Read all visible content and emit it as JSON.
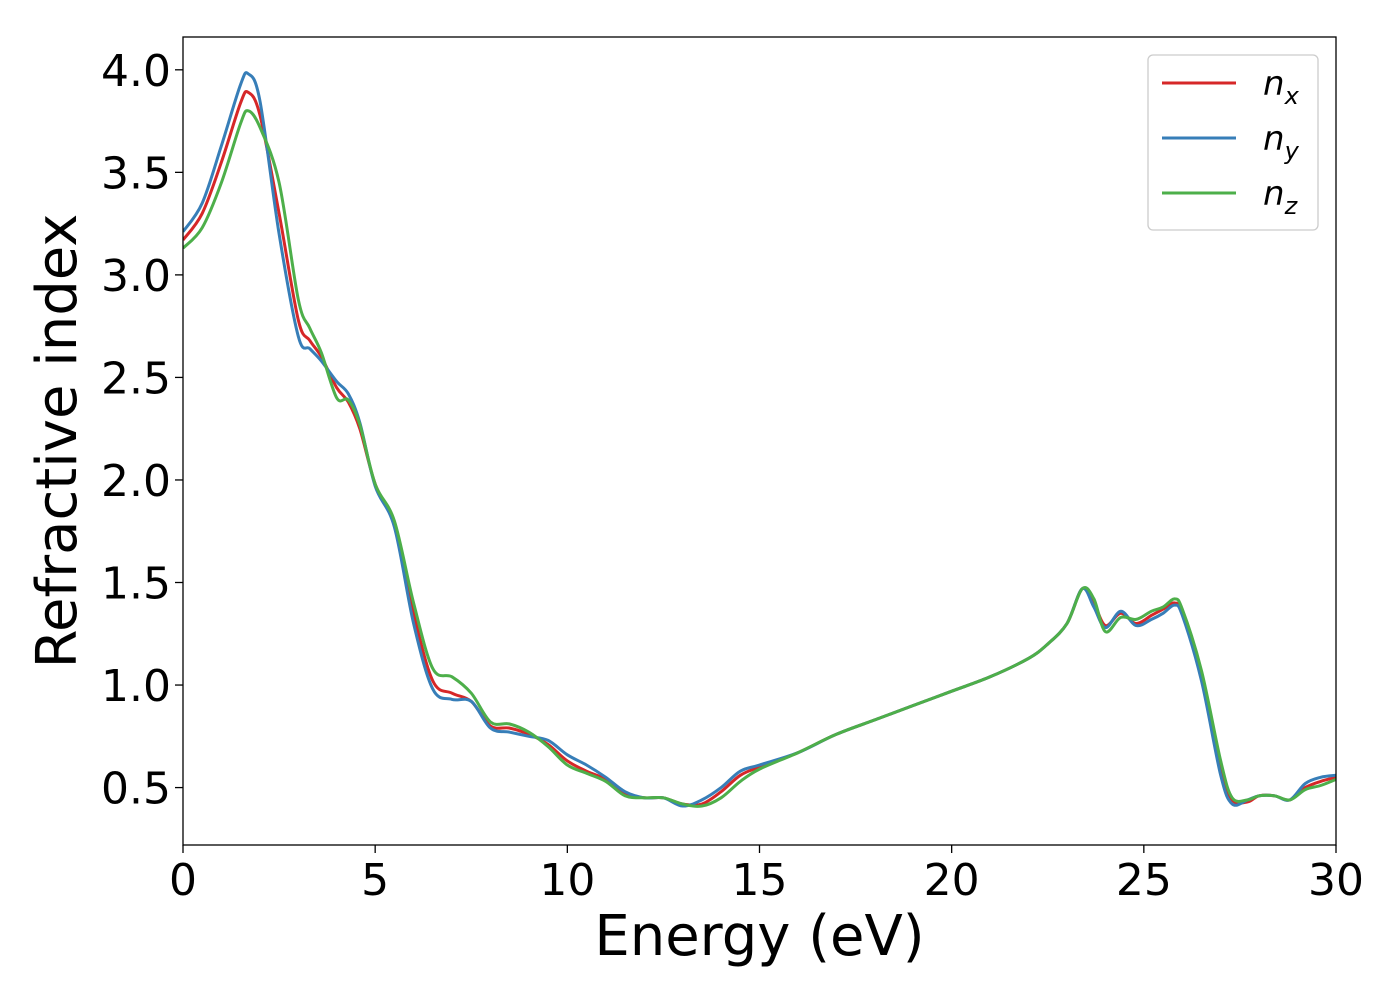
{
  "chart_data": {
    "type": "line",
    "title": "",
    "xlabel": "Energy (eV)",
    "ylabel": "Refractive index",
    "xlim": [
      0,
      30
    ],
    "ylim": [
      0.22,
      4.16
    ],
    "xticks": [
      0,
      5,
      10,
      15,
      20,
      25,
      30
    ],
    "xtick_labels": [
      "0",
      "5",
      "10",
      "15",
      "20",
      "25",
      "30"
    ],
    "yticks": [
      0.5,
      1.0,
      1.5,
      2.0,
      2.5,
      3.0,
      3.5,
      4.0
    ],
    "ytick_labels": [
      "0.5",
      "1.0",
      "1.5",
      "2.0",
      "2.5",
      "3.0",
      "3.5",
      "4.0"
    ],
    "grid": false,
    "legend_position": "top-right",
    "series": [
      {
        "name": "n_x",
        "legend_base": "n",
        "legend_sub": "x",
        "color": "#d62728",
        "x": [
          0,
          0.5,
          1.0,
          1.5,
          1.7,
          2.0,
          2.5,
          3.0,
          3.3,
          3.6,
          4.0,
          4.3,
          4.6,
          5.0,
          5.5,
          6.0,
          6.5,
          7.0,
          7.5,
          8.0,
          8.5,
          9.0,
          9.5,
          10.0,
          10.5,
          11.0,
          11.5,
          12.0,
          12.5,
          13.0,
          13.5,
          14.0,
          14.5,
          15.0,
          16.0,
          17.0,
          18.0,
          19.0,
          20.0,
          21.0,
          22.0,
          22.5,
          23.0,
          23.4,
          23.7,
          24.0,
          24.4,
          24.8,
          25.2,
          25.5,
          25.8,
          26.0,
          26.5,
          27.0,
          27.3,
          27.7,
          28.0,
          28.4,
          28.8,
          29.2,
          29.6,
          30.0
        ],
        "y": [
          3.17,
          3.3,
          3.55,
          3.84,
          3.89,
          3.78,
          3.3,
          2.78,
          2.68,
          2.6,
          2.45,
          2.38,
          2.25,
          1.98,
          1.78,
          1.35,
          1.02,
          0.96,
          0.92,
          0.8,
          0.79,
          0.76,
          0.71,
          0.63,
          0.58,
          0.54,
          0.47,
          0.45,
          0.45,
          0.42,
          0.42,
          0.48,
          0.56,
          0.6,
          0.67,
          0.76,
          0.83,
          0.9,
          0.97,
          1.04,
          1.13,
          1.2,
          1.3,
          1.47,
          1.4,
          1.29,
          1.35,
          1.3,
          1.34,
          1.37,
          1.4,
          1.35,
          1.05,
          0.6,
          0.44,
          0.43,
          0.46,
          0.46,
          0.44,
          0.5,
          0.53,
          0.55
        ]
      },
      {
        "name": "n_y",
        "legend_base": "n",
        "legend_sub": "y",
        "color": "#377eb8",
        "x": [
          0,
          0.5,
          1.0,
          1.5,
          1.7,
          2.0,
          2.5,
          3.0,
          3.3,
          3.6,
          4.0,
          4.3,
          4.6,
          5.0,
          5.5,
          6.0,
          6.5,
          7.0,
          7.5,
          8.0,
          8.5,
          9.0,
          9.5,
          10.0,
          10.5,
          11.0,
          11.5,
          12.0,
          12.5,
          13.0,
          13.5,
          14.0,
          14.5,
          15.0,
          16.0,
          17.0,
          18.0,
          19.0,
          20.0,
          21.0,
          22.0,
          22.5,
          23.0,
          23.4,
          23.7,
          24.0,
          24.4,
          24.8,
          25.2,
          25.5,
          25.8,
          26.0,
          26.5,
          27.0,
          27.3,
          27.7,
          28.0,
          28.4,
          28.8,
          29.2,
          29.6,
          30.0
        ],
        "y": [
          3.21,
          3.35,
          3.63,
          3.93,
          3.98,
          3.85,
          3.2,
          2.7,
          2.64,
          2.58,
          2.48,
          2.42,
          2.28,
          1.97,
          1.77,
          1.3,
          0.98,
          0.93,
          0.92,
          0.79,
          0.77,
          0.75,
          0.73,
          0.66,
          0.61,
          0.55,
          0.48,
          0.45,
          0.45,
          0.41,
          0.44,
          0.5,
          0.58,
          0.61,
          0.67,
          0.76,
          0.83,
          0.9,
          0.97,
          1.04,
          1.13,
          1.2,
          1.3,
          1.47,
          1.38,
          1.28,
          1.36,
          1.29,
          1.32,
          1.35,
          1.39,
          1.34,
          1.02,
          0.56,
          0.42,
          0.44,
          0.46,
          0.46,
          0.44,
          0.52,
          0.55,
          0.56
        ]
      },
      {
        "name": "n_z",
        "legend_base": "n",
        "legend_sub": "z",
        "color": "#4daf4a",
        "x": [
          0,
          0.5,
          1.0,
          1.5,
          1.7,
          2.0,
          2.5,
          3.0,
          3.3,
          3.6,
          4.0,
          4.3,
          4.6,
          5.0,
          5.5,
          6.0,
          6.5,
          7.0,
          7.5,
          8.0,
          8.5,
          9.0,
          9.5,
          10.0,
          10.5,
          11.0,
          11.5,
          12.0,
          12.5,
          13.0,
          13.5,
          14.0,
          14.5,
          15.0,
          16.0,
          17.0,
          18.0,
          19.0,
          20.0,
          21.0,
          22.0,
          22.5,
          23.0,
          23.4,
          23.7,
          24.0,
          24.4,
          24.8,
          25.2,
          25.5,
          25.8,
          26.0,
          26.5,
          27.0,
          27.3,
          27.7,
          28.0,
          28.4,
          28.8,
          29.2,
          29.6,
          30.0
        ],
        "y": [
          3.13,
          3.23,
          3.45,
          3.74,
          3.8,
          3.72,
          3.45,
          2.88,
          2.74,
          2.62,
          2.4,
          2.39,
          2.27,
          1.98,
          1.8,
          1.4,
          1.08,
          1.04,
          0.96,
          0.82,
          0.81,
          0.77,
          0.7,
          0.61,
          0.57,
          0.53,
          0.46,
          0.45,
          0.45,
          0.42,
          0.41,
          0.45,
          0.53,
          0.59,
          0.67,
          0.76,
          0.83,
          0.9,
          0.97,
          1.04,
          1.13,
          1.2,
          1.3,
          1.47,
          1.42,
          1.26,
          1.33,
          1.32,
          1.36,
          1.38,
          1.42,
          1.37,
          1.07,
          0.63,
          0.45,
          0.44,
          0.46,
          0.46,
          0.44,
          0.49,
          0.51,
          0.54
        ]
      }
    ]
  }
}
